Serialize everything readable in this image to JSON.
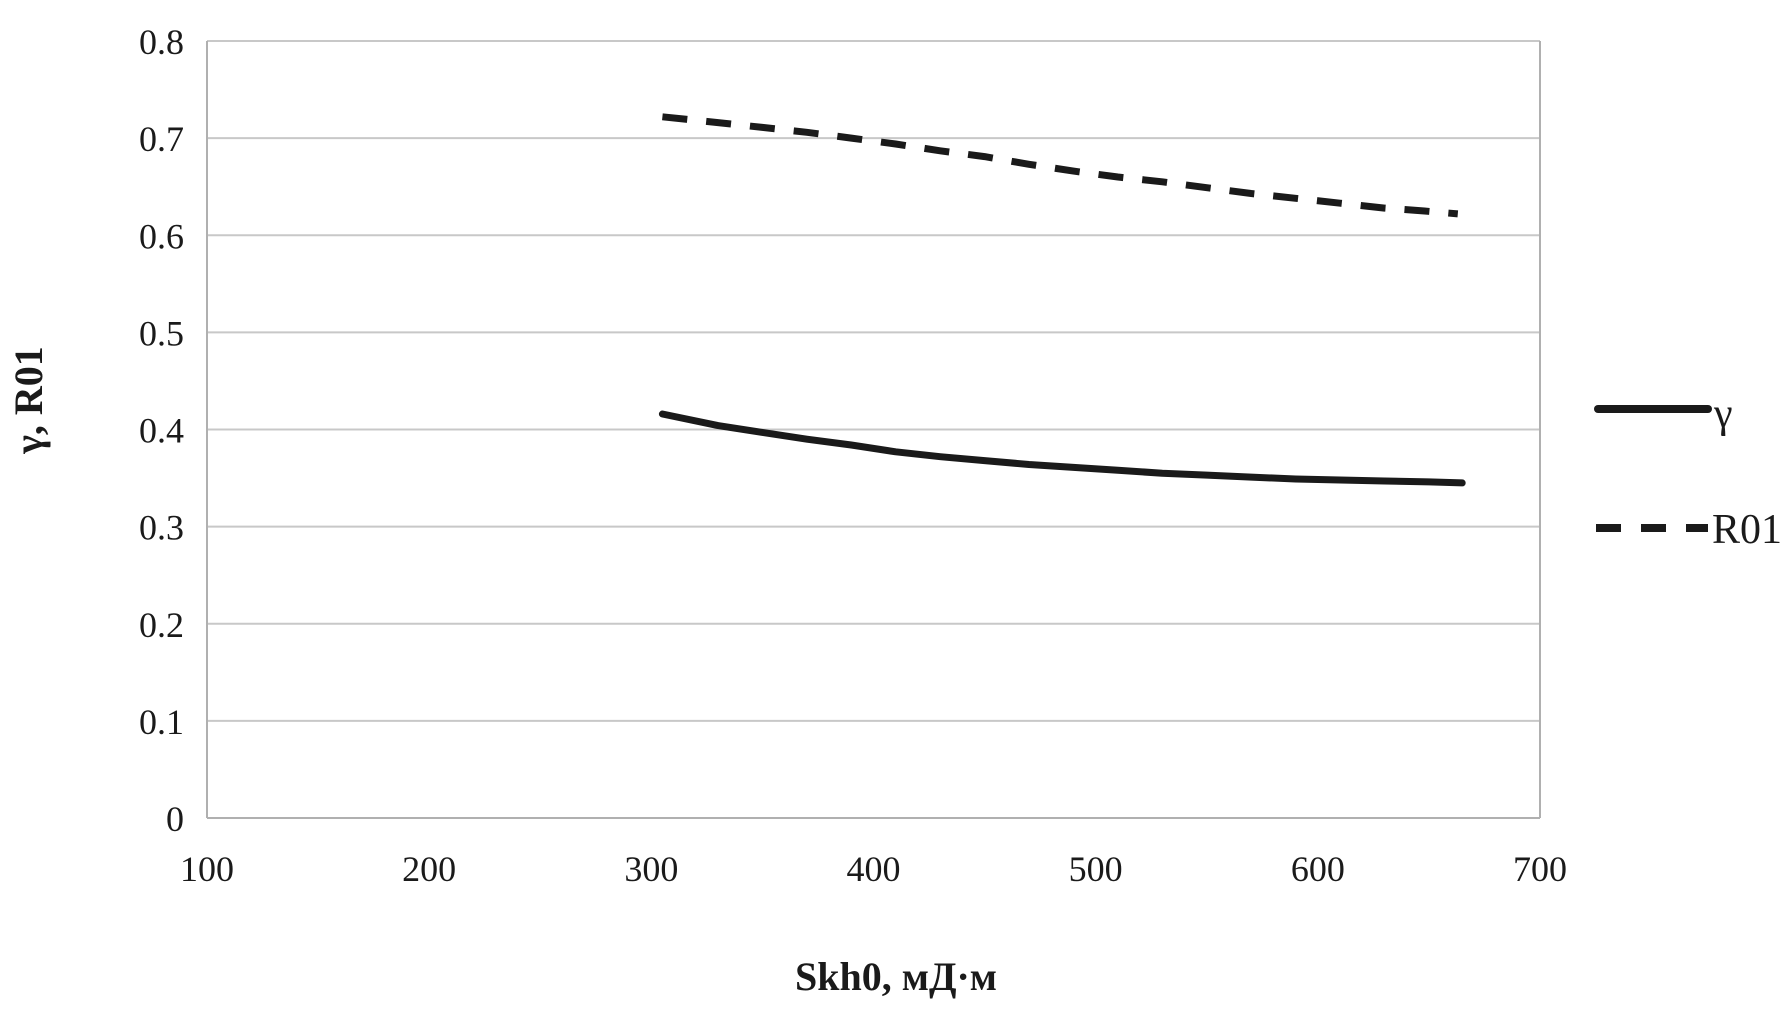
{
  "figure": {
    "background": "#ffffff"
  },
  "chart_data": {
    "type": "line",
    "title": "",
    "xlabel": "Skh0, мД·м",
    "ylabel": "γ, R01",
    "xlim": [
      100,
      700
    ],
    "ylim": [
      0,
      0.8
    ],
    "xticks": [
      100,
      200,
      300,
      400,
      500,
      600,
      700
    ],
    "yticks": [
      0,
      0.1,
      0.2,
      0.3,
      0.4,
      0.5,
      0.6,
      0.7,
      0.8
    ],
    "xtick_labels": [
      "100",
      "200",
      "300",
      "400",
      "500",
      "600",
      "700"
    ],
    "ytick_labels": [
      "0",
      "0.1",
      "0.2",
      "0.3",
      "0.4",
      "0.5",
      "0.6",
      "0.7",
      "0.8"
    ],
    "grid": "horizontal",
    "legend_position": "right",
    "colors": {
      "line": "#1a1a1a",
      "gridline": "#c8c8c8",
      "axis": "#b0b0b0",
      "text": "#1a1a1a"
    },
    "series": [
      {
        "name": "γ",
        "style": "solid",
        "color": "#1a1a1a",
        "points": [
          [
            305,
            0.416
          ],
          [
            330,
            0.404
          ],
          [
            350,
            0.397
          ],
          [
            370,
            0.39
          ],
          [
            390,
            0.384
          ],
          [
            410,
            0.377
          ],
          [
            430,
            0.372
          ],
          [
            450,
            0.368
          ],
          [
            470,
            0.364
          ],
          [
            490,
            0.361
          ],
          [
            510,
            0.358
          ],
          [
            530,
            0.355
          ],
          [
            550,
            0.353
          ],
          [
            570,
            0.351
          ],
          [
            590,
            0.349
          ],
          [
            610,
            0.348
          ],
          [
            630,
            0.347
          ],
          [
            650,
            0.346
          ],
          [
            665,
            0.345
          ]
        ]
      },
      {
        "name": "R01",
        "style": "dashed",
        "color": "#1a1a1a",
        "points": [
          [
            305,
            0.722
          ],
          [
            330,
            0.716
          ],
          [
            350,
            0.711
          ],
          [
            370,
            0.706
          ],
          [
            390,
            0.7
          ],
          [
            410,
            0.694
          ],
          [
            430,
            0.687
          ],
          [
            450,
            0.681
          ],
          [
            470,
            0.673
          ],
          [
            490,
            0.666
          ],
          [
            510,
            0.66
          ],
          [
            530,
            0.655
          ],
          [
            550,
            0.649
          ],
          [
            570,
            0.643
          ],
          [
            590,
            0.638
          ],
          [
            610,
            0.633
          ],
          [
            630,
            0.628
          ],
          [
            648,
            0.625
          ],
          [
            663,
            0.622
          ]
        ]
      }
    ]
  }
}
